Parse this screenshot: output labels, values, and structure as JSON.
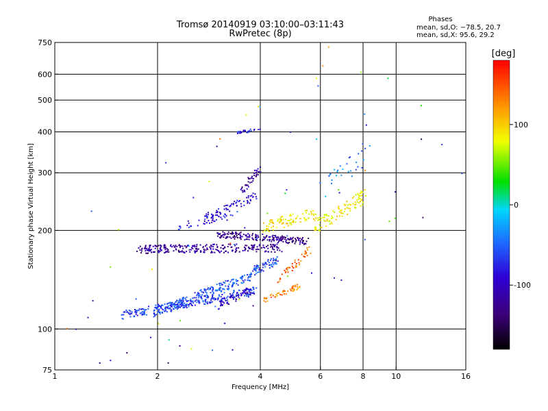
{
  "chart_data": {
    "type": "scatter",
    "title": "Tromsø 20140919 03:10:00–03:11:43",
    "subtitle": "RwPretec (8p)",
    "xlabel": "Frequency [MHz]",
    "ylabel": "Stationary phase Virtual Height [km]",
    "x_scale": "log",
    "y_scale": "log",
    "xlim": [
      1,
      16
    ],
    "ylim": [
      75,
      750
    ],
    "x_ticks": [
      1,
      2,
      4,
      6,
      8,
      10,
      16
    ],
    "y_ticks": [
      75,
      100,
      200,
      300,
      400,
      500,
      600,
      750
    ],
    "grid": true,
    "colorbar": {
      "label": "[deg]",
      "range": [
        -180,
        180
      ],
      "ticks": [
        100,
        0,
        -100
      ],
      "colors": [
        "#000000",
        "#3c0078",
        "#2e00d6",
        "#1e6bff",
        "#00d5ff",
        "#00e000",
        "#f2ff00",
        "#ff8c00",
        "#ff0000"
      ]
    },
    "stats": {
      "heading": "Phases",
      "line1": "mean, sd,O: −78.5, 20.7",
      "line2": "mean, sd,X:  95.6, 29.2"
    },
    "series": [
      {
        "segments": [
          {
            "f0": 1.95,
            "f1": 3.8,
            "h0": 112,
            "h1": 146,
            "phase": -55,
            "n": 220,
            "spread": 0.035
          },
          {
            "f0": 1.55,
            "f1": 3.9,
            "h0": 110,
            "h1": 131,
            "phase": -65,
            "n": 260,
            "spread": 0.03
          },
          {
            "f0": 3.0,
            "f1": 3.85,
            "h0": 118,
            "h1": 132,
            "phase": -100,
            "n": 60,
            "spread": 0.03
          },
          {
            "f0": 3.8,
            "f1": 4.5,
            "h0": 150,
            "h1": 162,
            "phase": -60,
            "n": 60,
            "spread": 0.03
          },
          {
            "f0": 4.05,
            "f1": 5.2,
            "h0": 122,
            "h1": 135,
            "phase": 130,
            "n": 55,
            "spread": 0.02
          },
          {
            "f0": 4.5,
            "f1": 5.6,
            "h0": 140,
            "h1": 175,
            "phase": 140,
            "n": 45,
            "spread": 0.03
          },
          {
            "f0": 1.75,
            "f1": 4.6,
            "h0": 175,
            "h1": 177,
            "phase": -120,
            "n": 260,
            "spread": 0.03
          },
          {
            "f0": 3.0,
            "f1": 5.5,
            "h0": 195,
            "h1": 185,
            "phase": -125,
            "n": 200,
            "spread": 0.025
          },
          {
            "f0": 2.7,
            "f1": 3.9,
            "h0": 215,
            "h1": 255,
            "phase": -95,
            "n": 70,
            "spread": 0.03
          },
          {
            "f0": 3.5,
            "f1": 4.0,
            "h0": 260,
            "h1": 310,
            "phase": -115,
            "n": 45,
            "spread": 0.03
          },
          {
            "f0": 2.3,
            "f1": 3.4,
            "h0": 205,
            "h1": 225,
            "phase": -85,
            "n": 40,
            "spread": 0.03
          },
          {
            "f0": 4.1,
            "f1": 5.8,
            "h0": 205,
            "h1": 225,
            "phase": 90,
            "n": 90,
            "spread": 0.04
          },
          {
            "f0": 5.8,
            "f1": 8.1,
            "h0": 205,
            "h1": 255,
            "phase": 85,
            "n": 110,
            "spread": 0.05
          },
          {
            "f0": 6.0,
            "f1": 8.5,
            "h0": 260,
            "h1": 360,
            "phase": -40,
            "n": 30,
            "spread": 0.08
          },
          {
            "f0": 3.4,
            "f1": 4.0,
            "h0": 395,
            "h1": 410,
            "phase": -80,
            "n": 25,
            "spread": 0.01
          },
          {
            "f0": 1.05,
            "f1": 16,
            "h0": 85,
            "h1": 650,
            "phase": 0,
            "n": 85,
            "spread": 0.9
          }
        ]
      }
    ]
  }
}
